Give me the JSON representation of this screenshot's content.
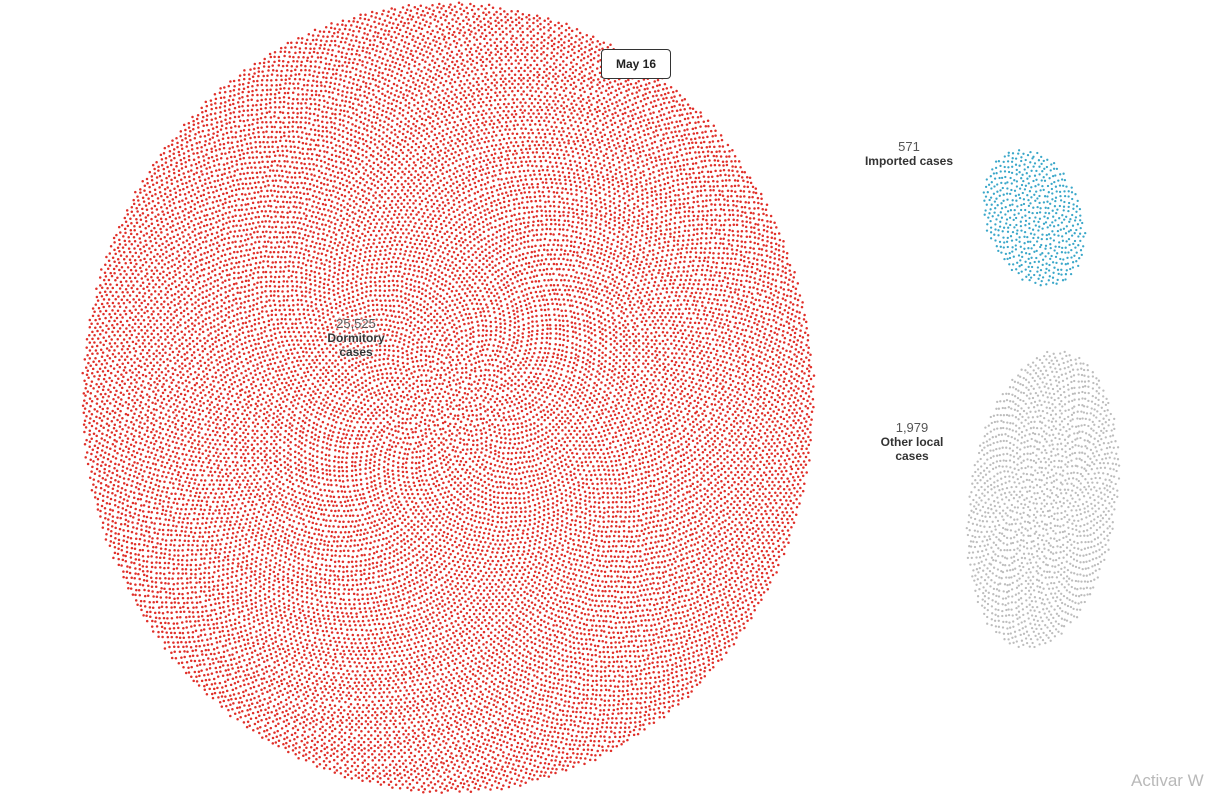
{
  "date_badge": "May 16",
  "watermark": "Activar W",
  "colors": {
    "dormitory": "#e0302a",
    "imported": "#3aa7c9",
    "other_local": "#bdbdbd"
  },
  "chart_data": {
    "type": "scatter",
    "title": "",
    "date": "May 16",
    "clusters": [
      {
        "key": "dormitory",
        "value_label": "25,525",
        "name": "Dormitory cases",
        "name_lines": [
          "Dormitory",
          "cases"
        ],
        "count": 25525,
        "color": "#e0302a"
      },
      {
        "key": "imported",
        "value_label": "571",
        "name": "Imported cases",
        "name_lines": [
          "Imported cases"
        ],
        "count": 571,
        "color": "#3aa7c9"
      },
      {
        "key": "other_local",
        "value_label": "1,979",
        "name": "Other local cases",
        "name_lines": [
          "Other local",
          "cases"
        ],
        "count": 1979,
        "color": "#bdbdbd"
      }
    ]
  }
}
